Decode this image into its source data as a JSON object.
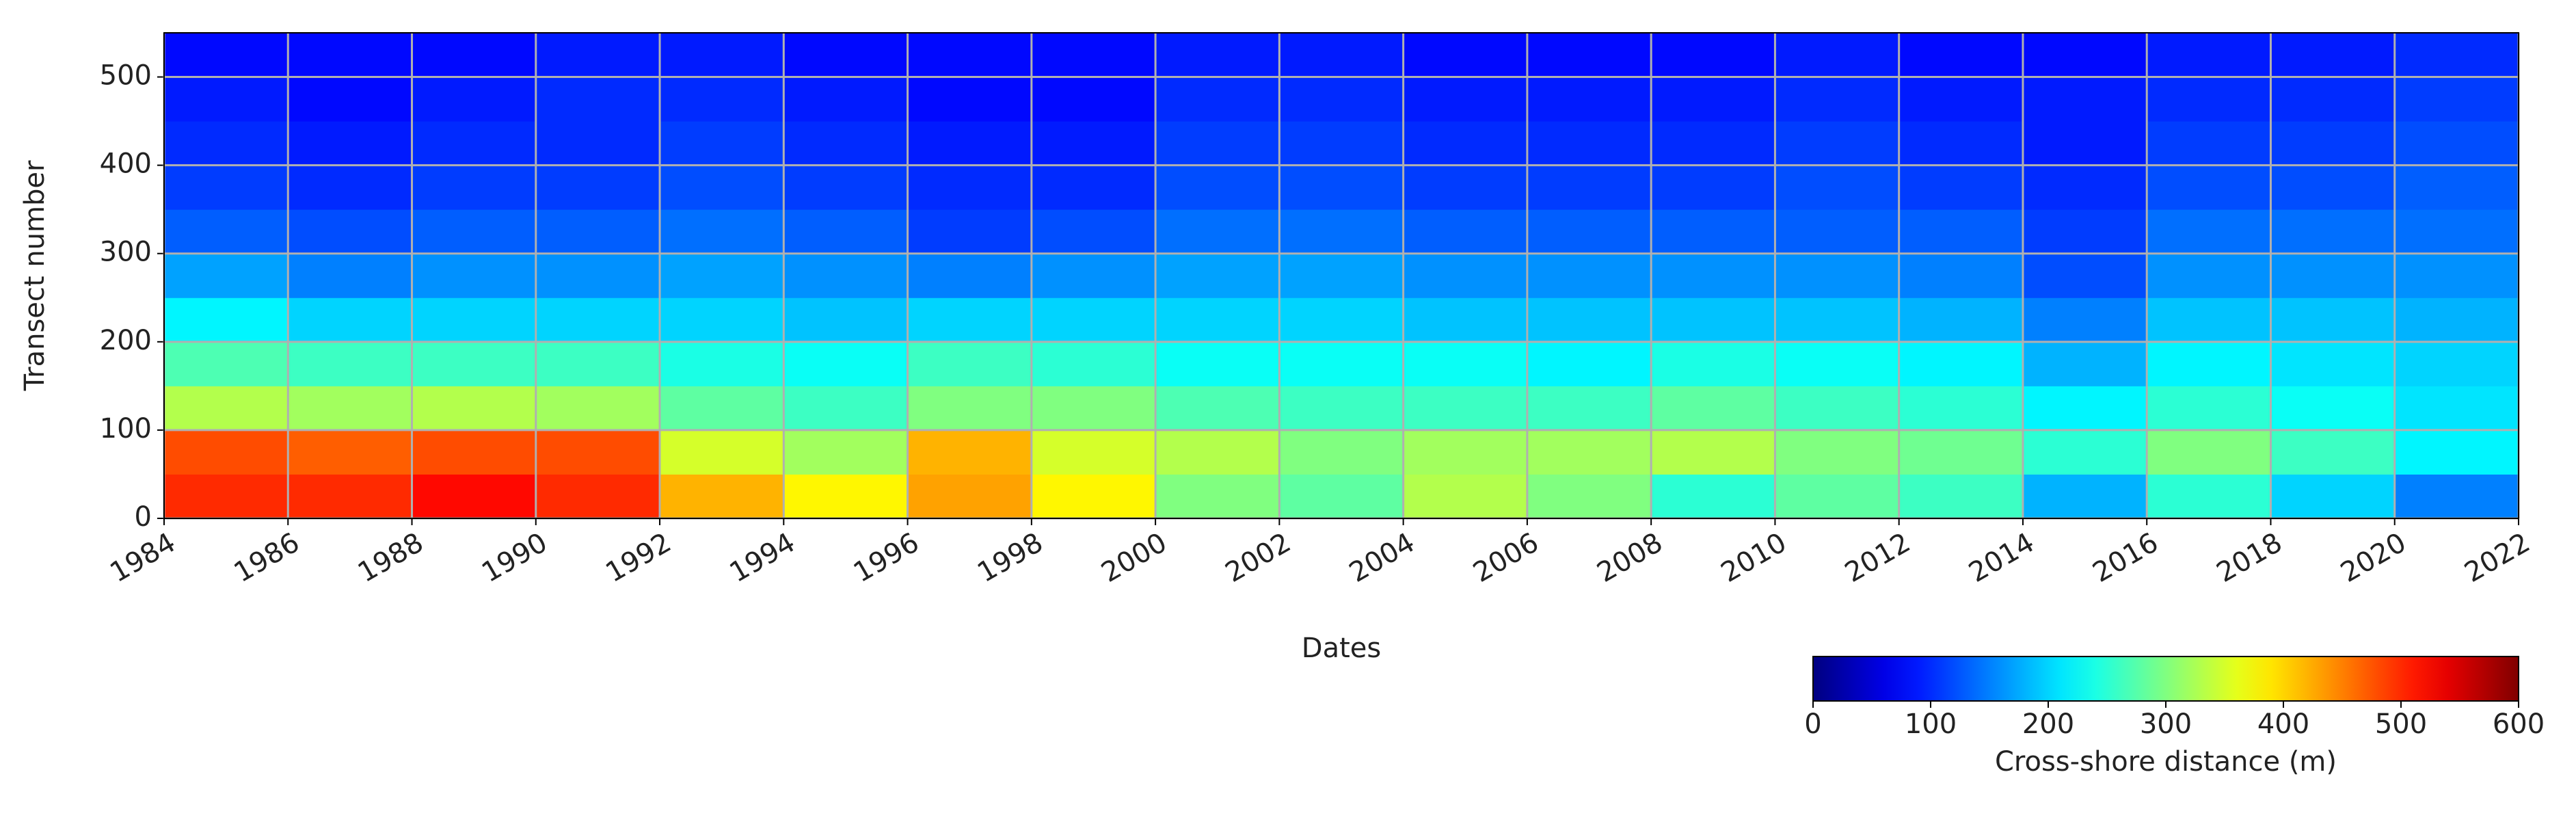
{
  "chart_data": {
    "type": "heatmap",
    "x_label": "Dates",
    "y_label": "Transect number",
    "x_bins": [
      1984,
      1986,
      1988,
      1990,
      1992,
      1994,
      1996,
      1998,
      2000,
      2002,
      2004,
      2006,
      2008,
      2010,
      2012,
      2014,
      2016,
      2018,
      2020,
      2022
    ],
    "y_bins": [
      0,
      50,
      100,
      150,
      200,
      250,
      300,
      350,
      400,
      450,
      500,
      550
    ],
    "z": [
      [
        500,
        500,
        520,
        500,
        420,
        380,
        430,
        380,
        300,
        280,
        330,
        300,
        250,
        280,
        260,
        180,
        250,
        200,
        150
      ],
      [
        480,
        470,
        480,
        480,
        350,
        320,
        420,
        350,
        330,
        300,
        320,
        320,
        330,
        300,
        290,
        250,
        300,
        260,
        220
      ],
      [
        330,
        320,
        330,
        320,
        280,
        260,
        300,
        300,
        270,
        260,
        260,
        260,
        280,
        260,
        250,
        220,
        250,
        230,
        210
      ],
      [
        270,
        260,
        260,
        260,
        240,
        230,
        260,
        250,
        230,
        230,
        230,
        220,
        240,
        230,
        220,
        180,
        220,
        210,
        200
      ],
      [
        220,
        200,
        200,
        200,
        200,
        190,
        200,
        200,
        200,
        200,
        190,
        190,
        190,
        190,
        180,
        150,
        190,
        190,
        180
      ],
      [
        170,
        150,
        160,
        160,
        170,
        160,
        150,
        160,
        170,
        170,
        160,
        160,
        160,
        160,
        150,
        120,
        160,
        160,
        160
      ],
      [
        130,
        120,
        130,
        130,
        140,
        130,
        110,
        120,
        140,
        140,
        130,
        130,
        130,
        130,
        130,
        110,
        140,
        140,
        140
      ],
      [
        110,
        100,
        110,
        110,
        120,
        110,
        100,
        100,
        120,
        120,
        110,
        110,
        110,
        120,
        110,
        100,
        120,
        120,
        130
      ],
      [
        100,
        90,
        100,
        100,
        110,
        100,
        90,
        90,
        110,
        110,
        100,
        100,
        100,
        110,
        100,
        90,
        110,
        110,
        120
      ],
      [
        90,
        80,
        90,
        100,
        100,
        90,
        80,
        80,
        100,
        100,
        90,
        90,
        90,
        100,
        90,
        90,
        100,
        100,
        110
      ],
      [
        80,
        80,
        80,
        90,
        90,
        80,
        80,
        80,
        90,
        90,
        80,
        80,
        80,
        90,
        80,
        80,
        90,
        90,
        100
      ]
    ],
    "xlim": [
      1984,
      2022
    ],
    "xticks": [
      1984,
      1986,
      1988,
      1990,
      1992,
      1994,
      1996,
      1998,
      2000,
      2002,
      2004,
      2006,
      2008,
      2010,
      2012,
      2014,
      2016,
      2018,
      2020,
      2022
    ],
    "ylim": [
      0,
      550
    ],
    "yticks": [
      0,
      100,
      200,
      300,
      400,
      500
    ],
    "grid": true,
    "colormap": "jet",
    "colorbar": {
      "label": "Cross-shore distance (m)",
      "lim": [
        0,
        600
      ],
      "ticks": [
        0,
        100,
        200,
        300,
        400,
        500,
        600
      ]
    }
  }
}
